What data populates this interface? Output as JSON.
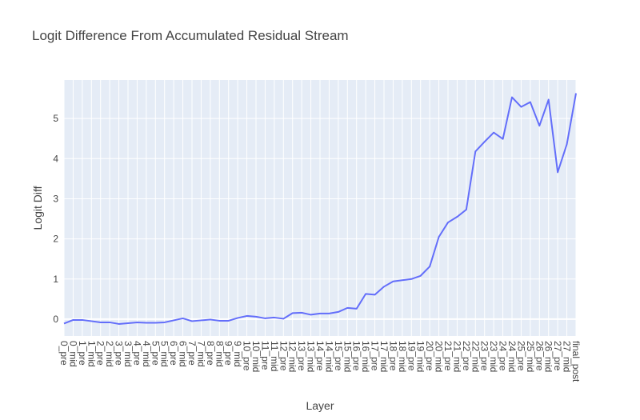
{
  "chart_data": {
    "type": "line",
    "title": "Logit Difference From Accumulated Residual Stream",
    "xlabel": "Layer",
    "ylabel": "Logit Diff",
    "ylim": [
      -0.42,
      5.96
    ],
    "yticks": [
      0,
      1,
      2,
      3,
      4,
      5
    ],
    "grid": true,
    "legend": "none",
    "colors": {
      "line": "#636efa",
      "plot_bg": "#e5ecf6",
      "grid": "#ffffff"
    },
    "categories": [
      "0_pre",
      "0_mid",
      "1_pre",
      "1_mid",
      "2_pre",
      "2_mid",
      "3_pre",
      "3_mid",
      "4_pre",
      "4_mid",
      "5_pre",
      "5_mid",
      "6_pre",
      "6_mid",
      "7_pre",
      "7_mid",
      "8_pre",
      "8_mid",
      "9_pre",
      "9_mid",
      "10_pre",
      "10_mid",
      "11_pre",
      "11_mid",
      "12_pre",
      "12_mid",
      "13_pre",
      "13_mid",
      "14_pre",
      "14_mid",
      "15_pre",
      "15_mid",
      "16_pre",
      "16_mid",
      "17_pre",
      "17_mid",
      "18_pre",
      "18_mid",
      "19_pre",
      "19_mid",
      "20_pre",
      "20_mid",
      "21_pre",
      "21_mid",
      "22_pre",
      "22_mid",
      "23_pre",
      "23_mid",
      "24_pre",
      "24_mid",
      "25_pre",
      "25_mid",
      "26_pre",
      "26_mid",
      "27_pre",
      "27_mid",
      "final_post"
    ],
    "series": [
      {
        "values": [
          -0.11,
          -0.02,
          -0.02,
          -0.05,
          -0.08,
          -0.08,
          -0.12,
          -0.1,
          -0.08,
          -0.09,
          -0.09,
          -0.08,
          -0.03,
          0.02,
          -0.05,
          -0.03,
          -0.01,
          -0.04,
          -0.04,
          0.03,
          0.08,
          0.06,
          0.02,
          0.04,
          0.01,
          0.15,
          0.16,
          0.11,
          0.14,
          0.14,
          0.18,
          0.28,
          0.26,
          0.63,
          0.61,
          0.81,
          0.94,
          0.97,
          1.0,
          1.08,
          1.31,
          2.05,
          2.41,
          2.55,
          2.73,
          4.18,
          4.42,
          4.65,
          4.49,
          5.53,
          5.29,
          5.41,
          4.82,
          5.47,
          3.66,
          4.36,
          5.63
        ]
      }
    ]
  }
}
